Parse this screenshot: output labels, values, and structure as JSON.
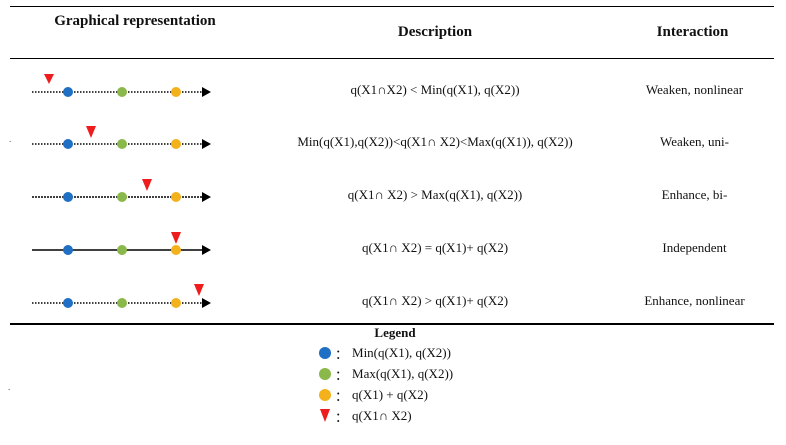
{
  "table": {
    "headers": {
      "graphical": "Graphical representation",
      "description": "Description",
      "interaction": "Interaction"
    },
    "rows": [
      {
        "description": "q(X1∩X2) < Min(q(X1), q(X2))",
        "interaction": "Weaken, nonlinear",
        "line_style": "dotted",
        "marker_position": "before-min"
      },
      {
        "description": "Min(q(X1),q(X2))<q(X1∩ X2)<Max(q(X1)), q(X2))",
        "interaction": "Weaken, uni-",
        "line_style": "dotted",
        "marker_position": "between-min-max"
      },
      {
        "description": "q(X1∩ X2) > Max(q(X1), q(X2))",
        "interaction": "Enhance, bi-",
        "line_style": "dotted",
        "marker_position": "between-max-sum"
      },
      {
        "description": "q(X1∩ X2) = q(X1)+ q(X2)",
        "interaction": "Independent",
        "line_style": "solid",
        "marker_position": "at-sum"
      },
      {
        "description": "q(X1∩ X2) > q(X1)+ q(X2)",
        "interaction": "Enhance, nonlinear",
        "line_style": "dotted",
        "marker_position": "after-sum"
      }
    ]
  },
  "legend": {
    "title": "Legend",
    "items": [
      {
        "symbol": "blue-dot",
        "colon": "：",
        "label": "Min(q(X1), q(X2))"
      },
      {
        "symbol": "green-dot",
        "colon": "：",
        "label": "Max(q(X1), q(X2))"
      },
      {
        "symbol": "yellow-dot",
        "colon": "：",
        "label": "q(X1) + q(X2)"
      },
      {
        "symbol": "red-triangle",
        "colon": "：",
        "label": "q(X1∩ X2)"
      }
    ]
  },
  "colors": {
    "min_dot": "#1f6fc5",
    "max_dot": "#8ab84a",
    "sum_dot": "#f3b21b",
    "intersection_marker": "#ee1c1c",
    "line": "#000000"
  },
  "stray_marks": {
    "left_dot": "."
  }
}
